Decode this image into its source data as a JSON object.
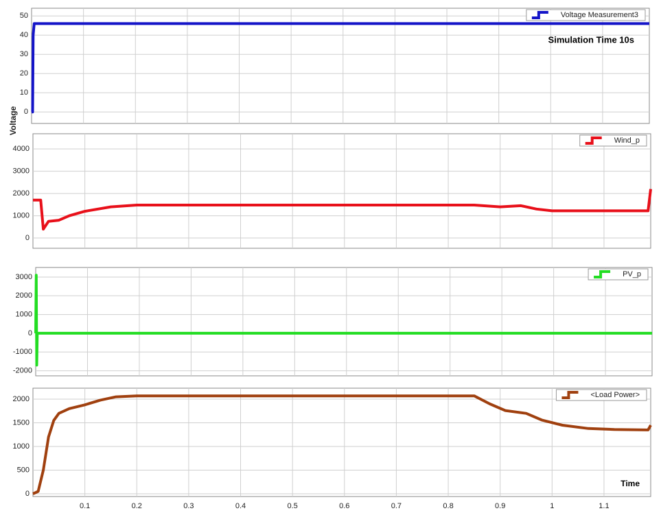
{
  "chart_data": [
    {
      "type": "line",
      "ylabel": "Voltage",
      "annotation": "Simulation Time 10s",
      "xlim": [
        0,
        1.19
      ],
      "xticks": [
        0.1,
        0.2,
        0.3,
        0.4,
        0.5,
        0.6,
        0.7,
        0.8,
        0.9,
        1,
        1.1
      ],
      "ylim": [
        -6,
        54
      ],
      "yticks": [
        0,
        10,
        20,
        30,
        40,
        50
      ],
      "grid": true,
      "legend": "upper right",
      "x": [
        0,
        0.002,
        0.003,
        0.005,
        0.1,
        0.3,
        0.5,
        0.7,
        0.9,
        1.1,
        1.19
      ],
      "series": [
        {
          "name": "Voltage Measurement3",
          "color": "#1414c8",
          "values": [
            0,
            0,
            40,
            46,
            46,
            46,
            46,
            46,
            46,
            46,
            46
          ]
        }
      ]
    },
    {
      "type": "line",
      "xlim": [
        0,
        1.19
      ],
      "xticks": [
        0.1,
        0.2,
        0.3,
        0.4,
        0.5,
        0.6,
        0.7,
        0.8,
        0.9,
        1,
        1.1
      ],
      "ylim": [
        -460,
        4680
      ],
      "yticks": [
        0,
        1000,
        2000,
        3000,
        4000
      ],
      "grid": true,
      "legend": "upper right",
      "x": [
        0,
        0.015,
        0.02,
        0.03,
        0.05,
        0.07,
        0.1,
        0.15,
        0.2,
        0.85,
        0.9,
        0.94,
        0.97,
        1.0,
        1.185,
        1.19
      ],
      "series": [
        {
          "name": "Wind_p",
          "color": "#e8101a",
          "values": [
            1700,
            1700,
            400,
            750,
            800,
            1000,
            1200,
            1400,
            1480,
            1480,
            1400,
            1450,
            1300,
            1220,
            1220,
            2200
          ]
        }
      ]
    },
    {
      "type": "line",
      "xlim": [
        0,
        1.19
      ],
      "xticks": [
        0.1,
        0.2,
        0.3,
        0.4,
        0.5,
        0.6,
        0.7,
        0.8,
        0.9,
        1,
        1.1
      ],
      "ylim": [
        -2270,
        3510
      ],
      "yticks": [
        -2000,
        -1000,
        0,
        1000,
        2000,
        3000
      ],
      "grid": true,
      "legend": "upper right",
      "x": [
        0,
        0.001,
        0.002,
        0.003,
        1.19
      ],
      "series": [
        {
          "name": "PV_p",
          "color": "#22dd22",
          "values": [
            0,
            3100,
            -1700,
            0,
            0
          ]
        }
      ]
    },
    {
      "type": "line",
      "xlabel": "Time",
      "xlim": [
        0,
        1.19
      ],
      "xticks": [
        0.1,
        0.2,
        0.3,
        0.4,
        0.5,
        0.6,
        0.7,
        0.8,
        0.9,
        1,
        1.1
      ],
      "ylim": [
        -58,
        2232
      ],
      "yticks": [
        0,
        500,
        1000,
        1500,
        2000
      ],
      "grid": true,
      "legend": "upper right",
      "x": [
        0,
        0.01,
        0.02,
        0.03,
        0.04,
        0.05,
        0.07,
        0.1,
        0.13,
        0.16,
        0.2,
        0.85,
        0.88,
        0.91,
        0.95,
        0.98,
        1.02,
        1.07,
        1.12,
        1.185,
        1.19
      ],
      "series": [
        {
          "name": "<Load Power>",
          "color": "#a0400f",
          "values": [
            0,
            50,
            500,
            1200,
            1550,
            1700,
            1800,
            1880,
            1980,
            2050,
            2070,
            2070,
            1900,
            1760,
            1700,
            1560,
            1450,
            1380,
            1360,
            1350,
            1450
          ]
        }
      ]
    }
  ]
}
